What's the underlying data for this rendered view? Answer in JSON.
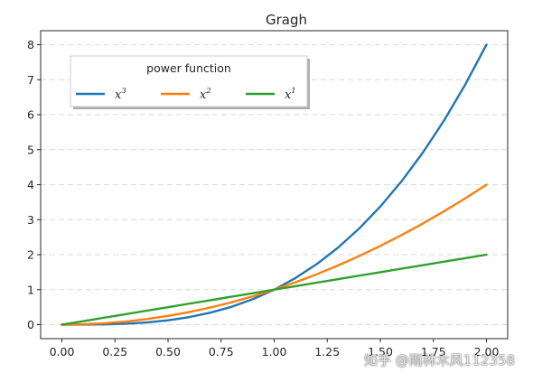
{
  "chart_data": {
    "type": "line",
    "title": "Gragh",
    "xlabel": "",
    "ylabel": "",
    "xlim": [
      -0.1,
      2.1
    ],
    "ylim": [
      -0.4,
      8.4
    ],
    "grid": "horizontal-dashed",
    "xticks": [
      "0.00",
      "0.25",
      "0.50",
      "0.75",
      "1.00",
      "1.25",
      "1.50",
      "1.75",
      "2.00"
    ],
    "yticks": [
      "0",
      "1",
      "2",
      "3",
      "4",
      "5",
      "6",
      "7",
      "8"
    ],
    "legend": {
      "title": "power function",
      "placement": "upper-left"
    },
    "x": [
      0.0,
      0.1,
      0.2,
      0.3,
      0.4,
      0.5,
      0.6,
      0.7,
      0.8,
      0.9,
      1.0,
      1.1,
      1.2,
      1.3,
      1.4,
      1.5,
      1.6,
      1.7,
      1.8,
      1.9,
      2.0
    ],
    "series": [
      {
        "name": "x",
        "name_sup": "3",
        "color": "#1f77b4",
        "values": [
          0.0,
          0.001,
          0.008,
          0.027,
          0.064,
          0.125,
          0.216,
          0.343,
          0.512,
          0.729,
          1.0,
          1.331,
          1.728,
          2.197,
          2.744,
          3.375,
          4.096,
          4.913,
          5.832,
          6.859,
          8.0
        ]
      },
      {
        "name": "x",
        "name_sup": "2",
        "color": "#ff7f0e",
        "values": [
          0.0,
          0.01,
          0.04,
          0.09,
          0.16,
          0.25,
          0.36,
          0.49,
          0.64,
          0.81,
          1.0,
          1.21,
          1.44,
          1.69,
          1.96,
          2.25,
          2.56,
          2.89,
          3.24,
          3.61,
          4.0
        ]
      },
      {
        "name": "x",
        "name_sup": "1",
        "color": "#2ca02c",
        "values": [
          0.0,
          0.1,
          0.2,
          0.3,
          0.4,
          0.5,
          0.6,
          0.7,
          0.8,
          0.9,
          1.0,
          1.1,
          1.2,
          1.3,
          1.4,
          1.5,
          1.6,
          1.7,
          1.8,
          1.9,
          2.0
        ]
      }
    ]
  },
  "watermark": "知乎 @雨林木风112358"
}
